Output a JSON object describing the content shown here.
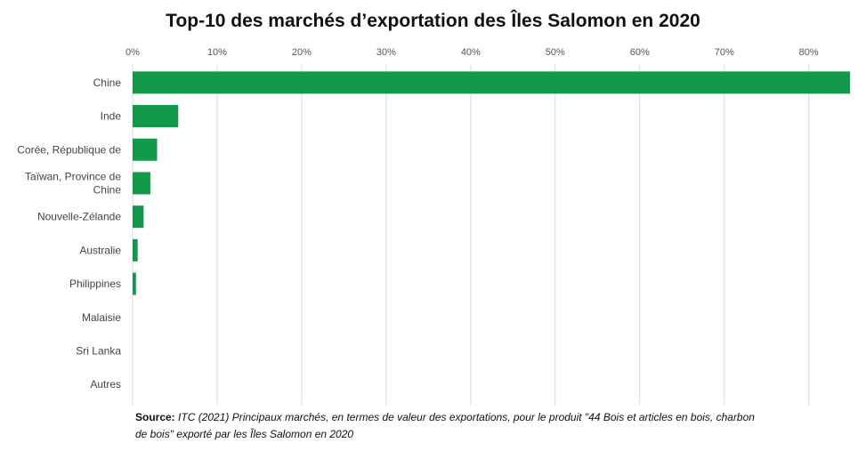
{
  "chart_data": {
    "type": "bar",
    "orientation": "horizontal",
    "title": "Top-10 des marchés d’exportation des Îles Salomon en 2020",
    "categories": [
      "Chine",
      "Inde",
      "Corée, République de",
      "Taïwan, Province de Chine",
      "Nouvelle-Zélande",
      "Australie",
      "Philippines",
      "Malaisie",
      "Sri Lanka",
      "Autres"
    ],
    "values": [
      85.3,
      5.4,
      2.9,
      2.1,
      1.3,
      0.6,
      0.4,
      0.0,
      0.0,
      0.0
    ],
    "xlim": [
      0,
      85
    ],
    "x_ticks": [
      "0%",
      "10%",
      "20%",
      "30%",
      "40%",
      "50%",
      "60%",
      "70%",
      "80%"
    ],
    "x_axis_position": "top",
    "grid": true,
    "bar_color": "#12994a"
  },
  "source": {
    "label": "Source:",
    "text": "ITC (2021) Principaux marchés, en termes de valeur des exportations, pour le produit \"44 Bois et articles en bois, charbon de bois\" exporté par les Îles Salomon en 2020"
  }
}
